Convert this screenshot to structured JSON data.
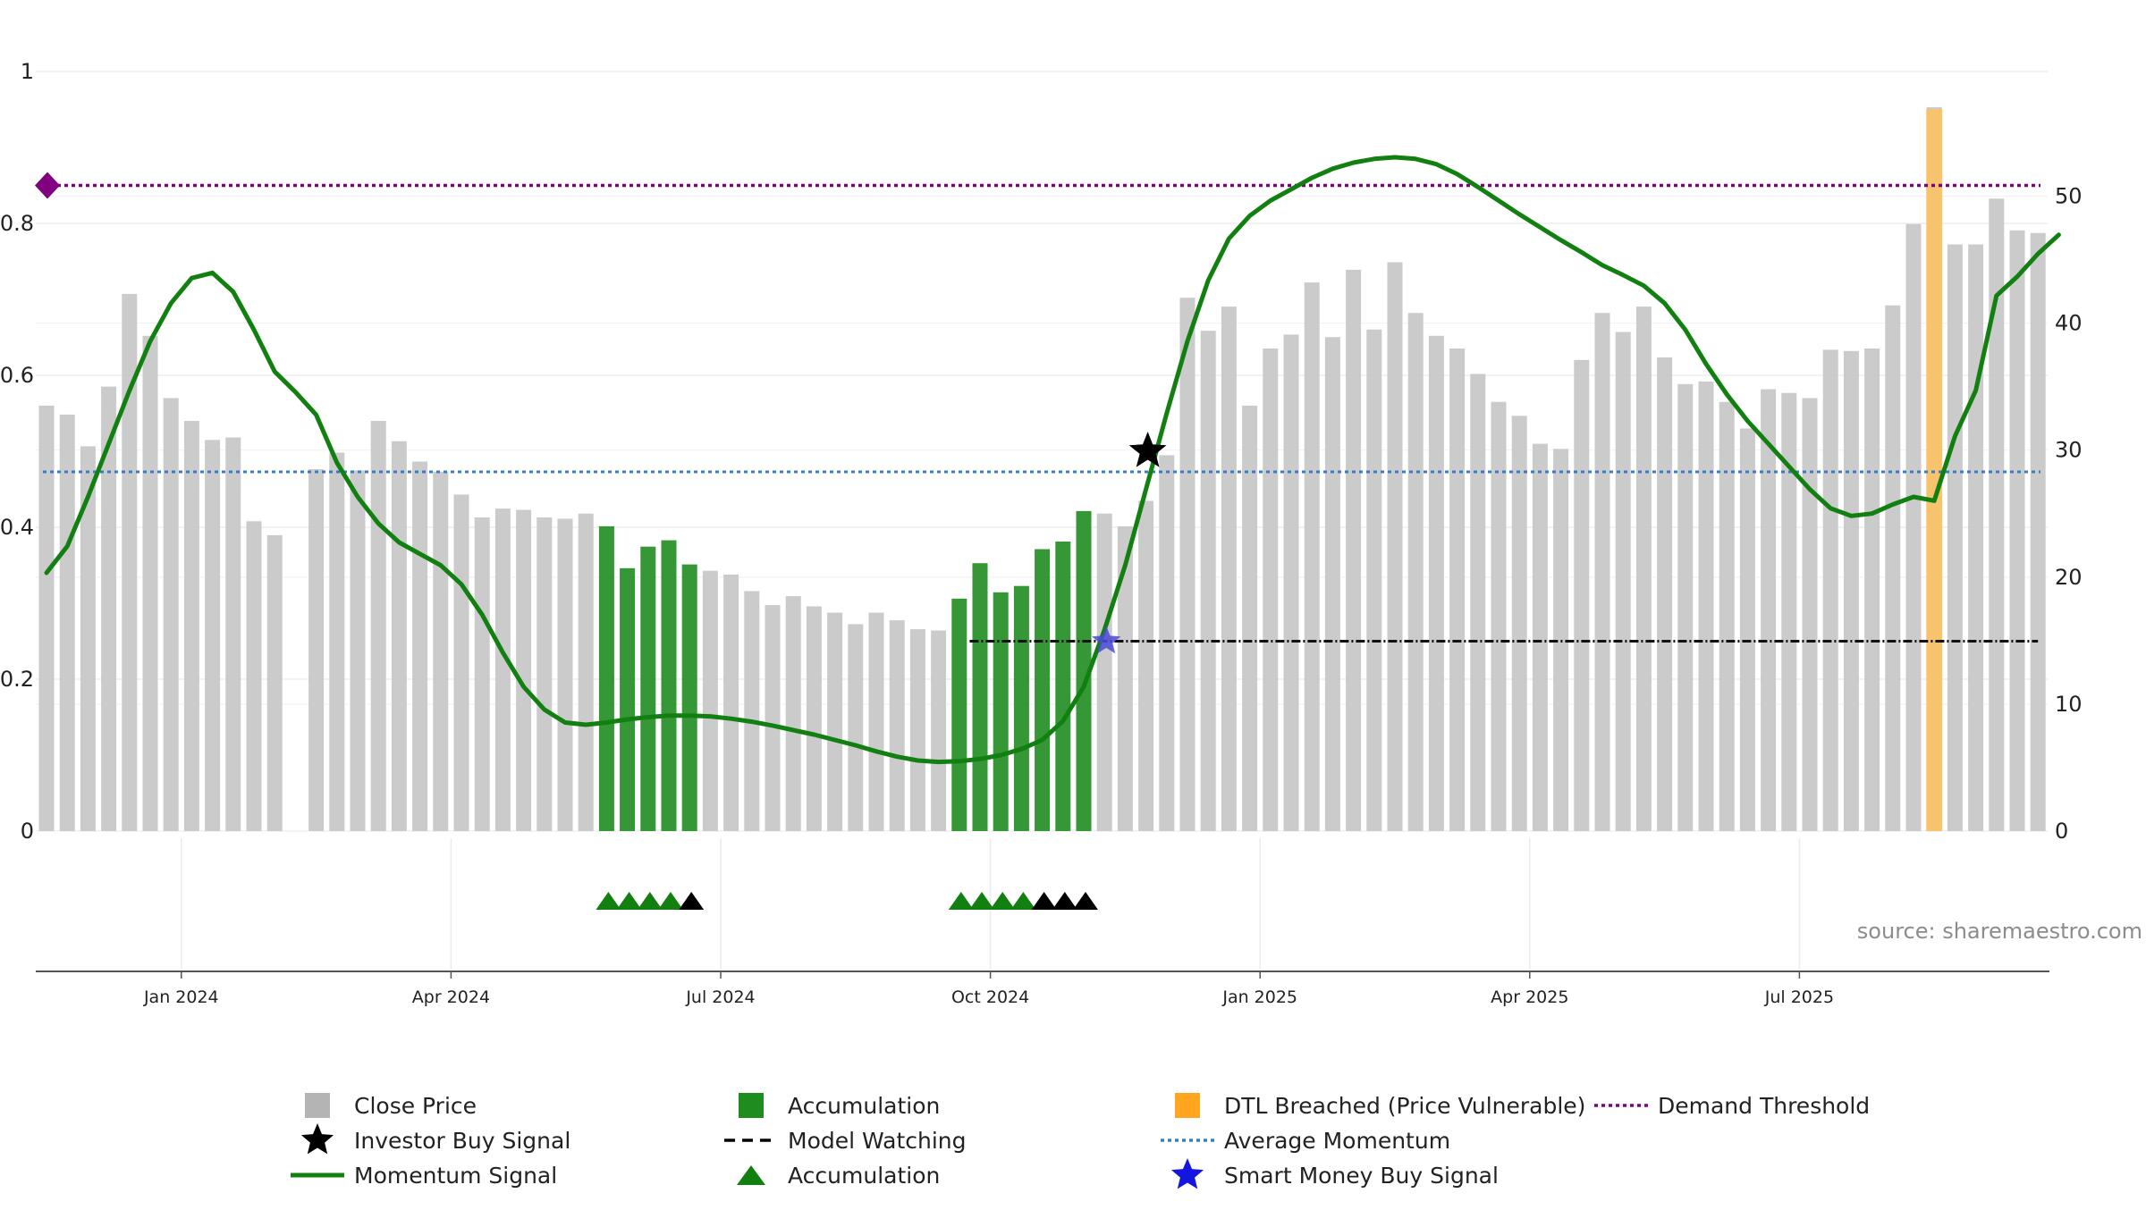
{
  "chart_data": {
    "type": "bar",
    "source_text": "source: sharemaestro.com",
    "left_axis": {
      "ylim": [
        0,
        1
      ],
      "ticks": [
        "0",
        "0.2",
        "0.4",
        "0.6",
        "0.8",
        "1"
      ]
    },
    "right_axis": {
      "ylim": [
        0,
        57
      ],
      "ticks": [
        "0",
        "10",
        "20",
        "30",
        "40",
        "50"
      ]
    },
    "x_axis": {
      "tick_labels": [
        "Jan 2024",
        "Apr 2024",
        "Jul 2024",
        "Oct 2024",
        "Jan 2025",
        "Apr 2025",
        "Jul 2025"
      ],
      "tick_weeks": [
        6.5,
        19.5,
        32.5,
        45.5,
        58.5,
        71.5,
        84.5
      ]
    },
    "close_price": {
      "name": "Close Price",
      "color": "#c8c8c8",
      "values": [
        33.5,
        32.8,
        30.3,
        35,
        42.3,
        39,
        34.1,
        32.3,
        30.8,
        31,
        24.4,
        23.3,
        null,
        28.5,
        29.8,
        28.4,
        32.3,
        30.7,
        29.1,
        28.3,
        26.5,
        24.7,
        25.4,
        25.3,
        24.7,
        24.6,
        25,
        24,
        20.7,
        22.4,
        22.9,
        21,
        20.5,
        20.2,
        18.9,
        17.8,
        18.5,
        17.7,
        17.2,
        16.3,
        17.2,
        16.6,
        15.9,
        15.8,
        18.3,
        21.1,
        18.8,
        19.3,
        22.2,
        22.8,
        25.2,
        25,
        24,
        26,
        29.6,
        42,
        39.4,
        41.3,
        33.5,
        38,
        39.1,
        43.2,
        38.9,
        44.2,
        39.5,
        44.8,
        40.8,
        39,
        38,
        36,
        33.8,
        32.7,
        30.5,
        30.1,
        37.1,
        40.8,
        39.3,
        41.3,
        37.3,
        35.2,
        35.4,
        33.8,
        31.7,
        34.8,
        34.5,
        34.1,
        37.9,
        37.8,
        38,
        41.4,
        47.8,
        57,
        46.2,
        46.2,
        49.8,
        47.3,
        47.1
      ]
    },
    "accumulation_bar_weeks": [
      27,
      28,
      29,
      30,
      31,
      44,
      45,
      46,
      47,
      48,
      49,
      50
    ],
    "accumulation_color": "#1f8c1f",
    "dtl_breached_weeks": [
      91
    ],
    "dtl_color": "#ffc25c",
    "momentum_signal": {
      "name": "Momentum Signal",
      "color": "#118011",
      "values": [
        0.34,
        0.375,
        0.44,
        0.51,
        0.58,
        0.645,
        0.695,
        0.728,
        0.735,
        0.71,
        0.66,
        0.605,
        0.578,
        0.548,
        0.485,
        0.44,
        0.405,
        0.38,
        0.365,
        0.35,
        0.325,
        0.285,
        0.235,
        0.19,
        0.16,
        0.143,
        0.14,
        0.143,
        0.147,
        0.15,
        0.152,
        0.152,
        0.151,
        0.148,
        0.144,
        0.139,
        0.133,
        0.127,
        0.12,
        0.113,
        0.105,
        0.098,
        0.093,
        0.091,
        0.092,
        0.095,
        0.1,
        0.108,
        0.12,
        0.145,
        0.19,
        0.265,
        0.35,
        0.45,
        0.55,
        0.645,
        0.725,
        0.78,
        0.81,
        0.83,
        0.845,
        0.86,
        0.872,
        0.88,
        0.885,
        0.887,
        0.885,
        0.878,
        0.865,
        0.848,
        0.83,
        0.812,
        0.795,
        0.778,
        0.762,
        0.745,
        0.732,
        0.718,
        0.695,
        0.66,
        0.615,
        0.575,
        0.54,
        0.51,
        0.48,
        0.45,
        0.425,
        0.415,
        0.418,
        0.43,
        0.44,
        0.435,
        0.52,
        0.58,
        0.705,
        0.73,
        0.76,
        0.785
      ]
    },
    "average_momentum": {
      "name": "Average Momentum",
      "value": 0.473,
      "color": "#3a7dbf"
    },
    "demand_threshold": {
      "name": "Demand Threshold",
      "value": 0.85,
      "color": "#800080"
    },
    "model_watching": {
      "name": "Model Watching",
      "value": 0.25,
      "start_week": 44.5,
      "end_week": 96,
      "color": "#111111"
    },
    "investor_buy_signal": {
      "name": "Investor Buy Signal",
      "week": 53,
      "value": 0.5,
      "color": "#000000"
    },
    "smart_money_buy_signal": {
      "name": "Smart Money Buy Signal",
      "week": 51,
      "value": 0.25,
      "color": "#4a4ad8"
    },
    "demand_marker": {
      "week": 0,
      "value": 0.85,
      "color": "#800080"
    },
    "accumulation_triangles": {
      "green_weeks": [
        27,
        28,
        29,
        30,
        44,
        45,
        46,
        47
      ],
      "black_weeks": [
        31,
        48,
        49,
        50
      ],
      "green_color": "#118011",
      "black_color": "#000000"
    },
    "legend": [
      {
        "label": "Close Price",
        "symbol": "square",
        "color": "#b4b4b4"
      },
      {
        "label": "Investor Buy Signal",
        "symbol": "star",
        "color": "#000000"
      },
      {
        "label": "Momentum Signal",
        "symbol": "line",
        "color": "#118011"
      },
      {
        "label": "Accumulation",
        "symbol": "square",
        "color": "#1f8c1f"
      },
      {
        "label": "Model Watching",
        "symbol": "dash",
        "color": "#000000"
      },
      {
        "label": "Accumulation",
        "symbol": "triangle",
        "color": "#118011"
      },
      {
        "label": "DTL Breached (Price Vulnerable)",
        "symbol": "square",
        "color": "#ffa51f"
      },
      {
        "label": "Average Momentum",
        "symbol": "dotline",
        "color": "#3a7dbf"
      },
      {
        "label": "Smart Money Buy Signal",
        "symbol": "star",
        "color": "#1515e0"
      },
      {
        "label": "Demand Threshold",
        "symbol": "dotline",
        "color": "#800080"
      }
    ]
  }
}
